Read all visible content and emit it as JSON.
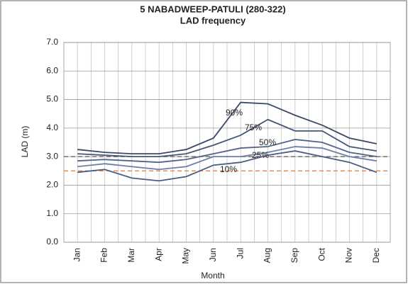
{
  "chart_data": {
    "type": "line",
    "title": "5 NABADWEEP-PATULI (280-322)",
    "subtitle": "LAD frequency",
    "x_label": "Month",
    "y_label": "LAD (m)",
    "categories": [
      "Jan",
      "Feb",
      "Mar",
      "Apr",
      "May",
      "Jun",
      "Jul",
      "Aug",
      "Sep",
      "Oct",
      "Nov",
      "Dec"
    ],
    "series": [
      {
        "name": "90%",
        "color": "#3b4868",
        "values": [
          3.25,
          3.15,
          3.1,
          3.1,
          3.25,
          3.65,
          4.9,
          4.85,
          4.45,
          4.1,
          3.65,
          3.45
        ]
      },
      {
        "name": "75%",
        "color": "#44557a",
        "values": [
          3.1,
          3.05,
          3.0,
          3.0,
          3.1,
          3.4,
          3.75,
          4.3,
          3.9,
          3.9,
          3.35,
          3.2
        ]
      },
      {
        "name": "50%",
        "color": "#51648c",
        "values": [
          2.85,
          2.9,
          2.85,
          2.8,
          2.9,
          3.1,
          3.3,
          3.35,
          3.6,
          3.5,
          3.15,
          3.0
        ]
      },
      {
        "name": "25%",
        "color": "#6a80a8",
        "values": [
          2.65,
          2.75,
          2.65,
          2.55,
          2.65,
          3.0,
          3.0,
          3.15,
          3.35,
          3.3,
          3.0,
          2.85
        ]
      },
      {
        "name": "10%",
        "color": "#4d5c84",
        "values": [
          2.45,
          2.55,
          2.25,
          2.15,
          2.3,
          2.7,
          2.8,
          3.05,
          3.2,
          3.0,
          2.8,
          2.45
        ]
      }
    ],
    "reference_lines": [
      {
        "value": 3.0,
        "color": "#555555"
      },
      {
        "value": 2.5,
        "color": "#e07a3a"
      }
    ],
    "ylim": [
      0,
      7
    ],
    "yticks": [
      {
        "value": 0,
        "label": "0.0"
      },
      {
        "value": 1,
        "label": "1.0"
      },
      {
        "value": 2,
        "label": "2.0"
      },
      {
        "value": 3,
        "label": "3.0"
      },
      {
        "value": 4,
        "label": "4.0"
      },
      {
        "value": 5,
        "label": "5.0"
      },
      {
        "value": 6,
        "label": "6.0"
      },
      {
        "value": 7,
        "label": "7.0"
      }
    ],
    "grid": true
  }
}
